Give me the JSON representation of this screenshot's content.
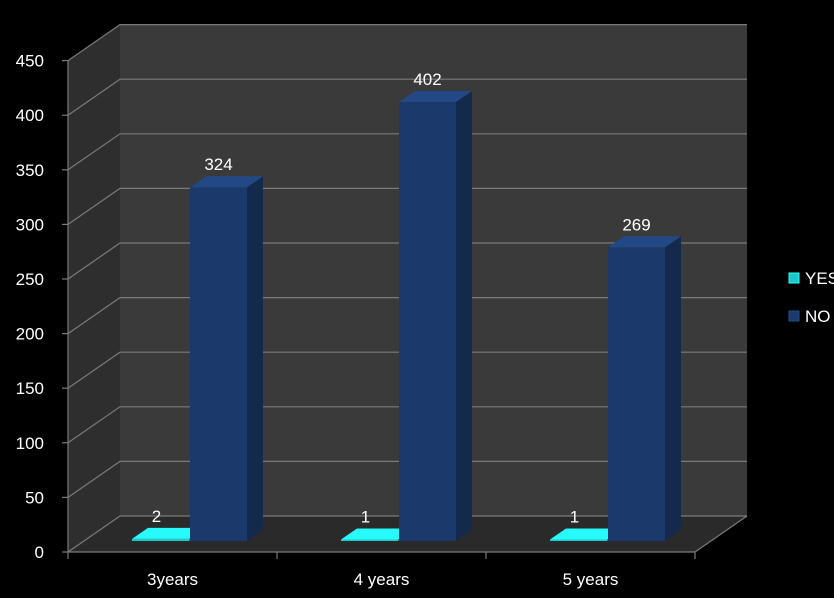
{
  "chart_data": {
    "type": "bar",
    "categories": [
      "3years",
      "4 years",
      "5 years"
    ],
    "series": [
      {
        "name": "YES",
        "values": [
          2,
          1,
          1
        ],
        "color": "#1ec8c8"
      },
      {
        "name": "NO",
        "values": [
          324,
          402,
          269
        ],
        "color": "#1b3a6b"
      }
    ],
    "ylim": [
      0,
      450
    ],
    "yticks": [
      0,
      50,
      100,
      150,
      200,
      250,
      300,
      350,
      400,
      450
    ],
    "grid": true,
    "legend_position": "right",
    "style": "3d-clustered-column"
  },
  "colors": {
    "background": "#000000",
    "wall": "#3a3a3a",
    "floor": "#2a2a2a",
    "grid": "#7a7a7a",
    "text": "#ffffff"
  }
}
